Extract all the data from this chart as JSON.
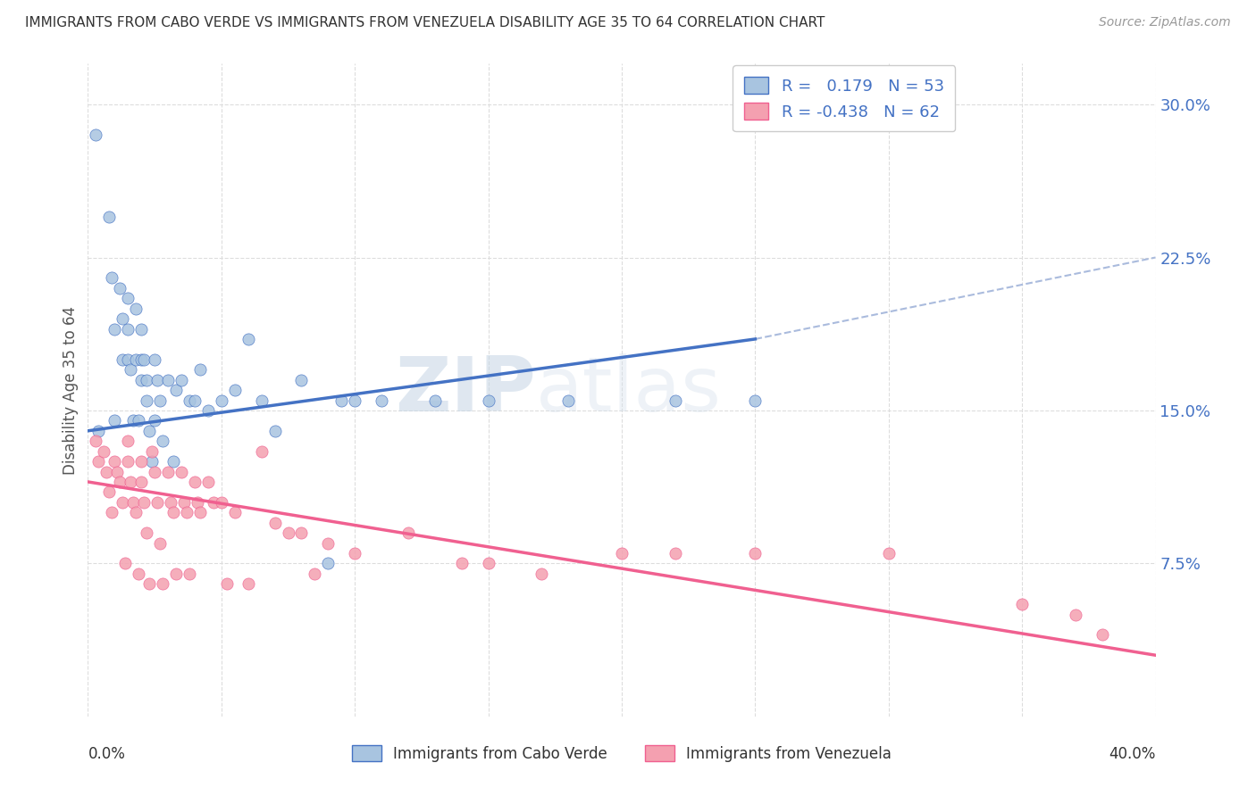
{
  "title": "IMMIGRANTS FROM CABO VERDE VS IMMIGRANTS FROM VENEZUELA DISABILITY AGE 35 TO 64 CORRELATION CHART",
  "source": "Source: ZipAtlas.com",
  "ylabel": "Disability Age 35 to 64",
  "yticks": [
    "7.5%",
    "15.0%",
    "22.5%",
    "30.0%"
  ],
  "ytick_vals": [
    0.075,
    0.15,
    0.225,
    0.3
  ],
  "xlim": [
    0.0,
    0.4
  ],
  "ylim": [
    0.0,
    0.32
  ],
  "cabo_verde_color": "#a8c4e0",
  "venezuela_color": "#f4a0b0",
  "cabo_verde_line_color": "#4472c4",
  "venezuela_line_color": "#f06090",
  "cabo_verde_r": 0.179,
  "cabo_verde_n": 53,
  "venezuela_r": -0.438,
  "venezuela_n": 62,
  "watermark_zip": "ZIP",
  "watermark_atlas": "atlas",
  "legend_cabo": "Immigrants from Cabo Verde",
  "legend_venezuela": "Immigrants from Venezuela",
  "cabo_verde_x": [
    0.003,
    0.004,
    0.008,
    0.009,
    0.01,
    0.01,
    0.012,
    0.013,
    0.013,
    0.015,
    0.015,
    0.015,
    0.016,
    0.017,
    0.018,
    0.018,
    0.019,
    0.02,
    0.02,
    0.02,
    0.021,
    0.022,
    0.022,
    0.023,
    0.024,
    0.025,
    0.025,
    0.026,
    0.027,
    0.028,
    0.03,
    0.032,
    0.033,
    0.035,
    0.038,
    0.04,
    0.042,
    0.045,
    0.05,
    0.055,
    0.06,
    0.065,
    0.07,
    0.08,
    0.09,
    0.095,
    0.1,
    0.11,
    0.13,
    0.15,
    0.18,
    0.22,
    0.25
  ],
  "cabo_verde_y": [
    0.285,
    0.14,
    0.245,
    0.215,
    0.19,
    0.145,
    0.21,
    0.195,
    0.175,
    0.205,
    0.19,
    0.175,
    0.17,
    0.145,
    0.2,
    0.175,
    0.145,
    0.19,
    0.175,
    0.165,
    0.175,
    0.165,
    0.155,
    0.14,
    0.125,
    0.175,
    0.145,
    0.165,
    0.155,
    0.135,
    0.165,
    0.125,
    0.16,
    0.165,
    0.155,
    0.155,
    0.17,
    0.15,
    0.155,
    0.16,
    0.185,
    0.155,
    0.14,
    0.165,
    0.075,
    0.155,
    0.155,
    0.155,
    0.155,
    0.155,
    0.155,
    0.155,
    0.155
  ],
  "venezuela_x": [
    0.003,
    0.004,
    0.006,
    0.007,
    0.008,
    0.009,
    0.01,
    0.011,
    0.012,
    0.013,
    0.014,
    0.015,
    0.015,
    0.016,
    0.017,
    0.018,
    0.019,
    0.02,
    0.02,
    0.021,
    0.022,
    0.023,
    0.024,
    0.025,
    0.026,
    0.027,
    0.028,
    0.03,
    0.031,
    0.032,
    0.033,
    0.035,
    0.036,
    0.037,
    0.038,
    0.04,
    0.041,
    0.042,
    0.045,
    0.047,
    0.05,
    0.052,
    0.055,
    0.06,
    0.065,
    0.07,
    0.075,
    0.08,
    0.085,
    0.09,
    0.1,
    0.12,
    0.14,
    0.15,
    0.17,
    0.2,
    0.22,
    0.25,
    0.3,
    0.35,
    0.37,
    0.38
  ],
  "venezuela_y": [
    0.135,
    0.125,
    0.13,
    0.12,
    0.11,
    0.1,
    0.125,
    0.12,
    0.115,
    0.105,
    0.075,
    0.135,
    0.125,
    0.115,
    0.105,
    0.1,
    0.07,
    0.125,
    0.115,
    0.105,
    0.09,
    0.065,
    0.13,
    0.12,
    0.105,
    0.085,
    0.065,
    0.12,
    0.105,
    0.1,
    0.07,
    0.12,
    0.105,
    0.1,
    0.07,
    0.115,
    0.105,
    0.1,
    0.115,
    0.105,
    0.105,
    0.065,
    0.1,
    0.065,
    0.13,
    0.095,
    0.09,
    0.09,
    0.07,
    0.085,
    0.08,
    0.09,
    0.075,
    0.075,
    0.07,
    0.08,
    0.08,
    0.08,
    0.08,
    0.055,
    0.05,
    0.04
  ],
  "cabo_line_x_start": 0.0,
  "cabo_line_x_end": 0.25,
  "cabo_line_y_start": 0.14,
  "cabo_line_y_end": 0.185,
  "dash_line_x_start": 0.25,
  "dash_line_x_end": 0.4,
  "dash_line_y_start": 0.185,
  "dash_line_y_end": 0.225,
  "venez_line_x_start": 0.0,
  "venez_line_x_end": 0.4,
  "venez_line_y_start": 0.115,
  "venez_line_y_end": 0.03
}
